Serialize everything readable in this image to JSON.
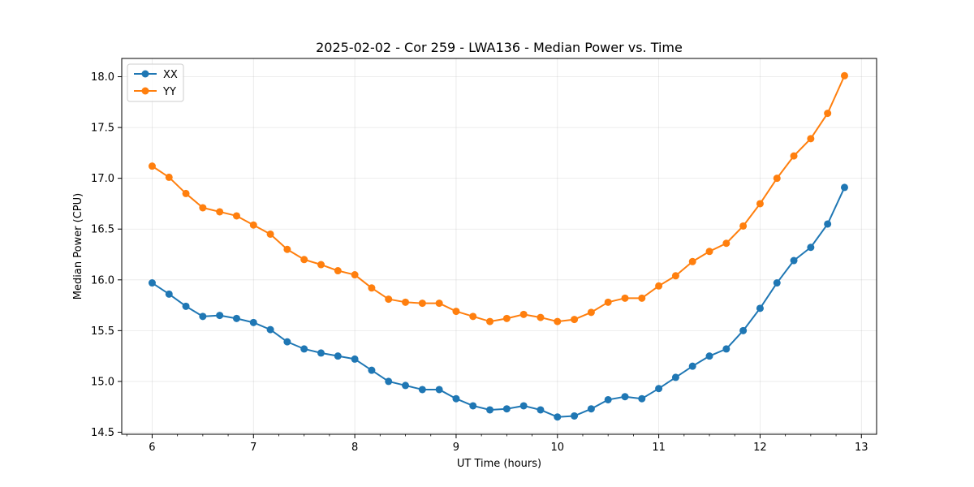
{
  "chart_data": {
    "type": "line",
    "title": "2025-02-02 - Cor 259 - LWA136 - Median Power vs. Time",
    "xlabel": "UT Time (hours)",
    "ylabel": "Median Power (CPU)",
    "xlim": [
      5.7,
      13.15
    ],
    "ylim": [
      14.48,
      18.18
    ],
    "xticks": [
      6,
      7,
      8,
      9,
      10,
      11,
      12,
      13
    ],
    "yticks": [
      14.5,
      15.0,
      15.5,
      16.0,
      16.5,
      17.0,
      17.5,
      18.0
    ],
    "xtick_labels": [
      "6",
      "7",
      "8",
      "9",
      "10",
      "11",
      "12",
      "13"
    ],
    "ytick_labels": [
      "14.5",
      "15.0",
      "15.5",
      "16.0",
      "16.5",
      "17.0",
      "17.5",
      "18.0"
    ],
    "grid": true,
    "legend_position": "top-left",
    "x": [
      6.0,
      6.1667,
      6.3333,
      6.5,
      6.6667,
      6.8333,
      7.0,
      7.1667,
      7.3333,
      7.5,
      7.6667,
      7.8333,
      8.0,
      8.1667,
      8.3333,
      8.5,
      8.6667,
      8.8333,
      9.0,
      9.1667,
      9.3333,
      9.5,
      9.6667,
      9.8333,
      10.0,
      10.1667,
      10.3333,
      10.5,
      10.6667,
      10.8333,
      11.0,
      11.1667,
      11.3333,
      11.5,
      11.6667,
      11.8333,
      12.0,
      12.1667,
      12.3333,
      12.5,
      12.6667,
      12.8333
    ],
    "series": [
      {
        "name": "XX",
        "color": "#1f77b4",
        "values": [
          15.97,
          15.86,
          15.74,
          15.64,
          15.65,
          15.62,
          15.58,
          15.51,
          15.39,
          15.32,
          15.28,
          15.25,
          15.22,
          15.11,
          15.0,
          14.96,
          14.92,
          14.92,
          14.83,
          14.76,
          14.72,
          14.73,
          14.76,
          14.72,
          14.65,
          14.66,
          14.73,
          14.82,
          14.85,
          14.83,
          14.93,
          15.04,
          15.15,
          15.25,
          15.32,
          15.5,
          15.72,
          15.97,
          16.19,
          16.32,
          16.55,
          16.91
        ]
      },
      {
        "name": "YY",
        "color": "#ff7f0e",
        "values": [
          17.12,
          17.01,
          16.85,
          16.71,
          16.67,
          16.63,
          16.54,
          16.45,
          16.3,
          16.2,
          16.15,
          16.09,
          16.05,
          15.92,
          15.81,
          15.78,
          15.77,
          15.77,
          15.69,
          15.64,
          15.59,
          15.62,
          15.66,
          15.63,
          15.59,
          15.61,
          15.68,
          15.78,
          15.82,
          15.82,
          15.94,
          16.04,
          16.18,
          16.28,
          16.36,
          16.53,
          16.75,
          17.0,
          17.22,
          17.39,
          17.64,
          18.01
        ]
      }
    ]
  }
}
